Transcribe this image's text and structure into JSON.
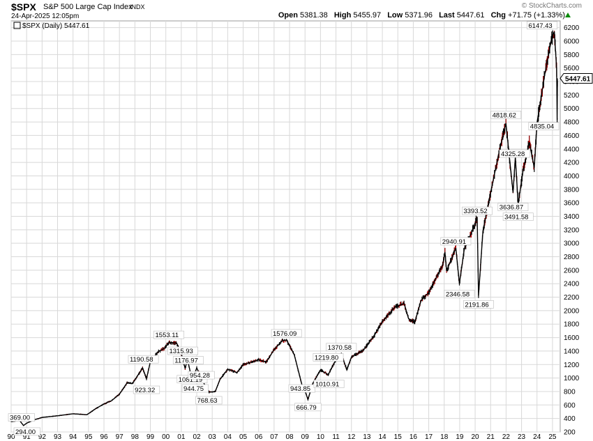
{
  "header": {
    "symbol": "$SPX",
    "name": "S&P 500 Large Cap Index",
    "exchange": "INDX",
    "datetime": "24-Apr-2025 12:05pm",
    "brand": "© StockCharts.com",
    "open_label": "Open",
    "open": "5381.38",
    "high_label": "High",
    "high": "5455.97",
    "low_label": "Low",
    "low": "5371.96",
    "last_label": "Last",
    "last": "5447.61",
    "chg_label": "Chg",
    "chg": "+71.75 (+1.33%)"
  },
  "legend": {
    "text": "$SPX (Daily) 5447.61",
    "icon": "chart-icon"
  },
  "price_tag": "5447.61",
  "colors": {
    "price_up": "#000000",
    "price_down": "#cc0000",
    "grid": "#d8d8d8",
    "up_arrow": "#0a8a0a"
  },
  "chart_data": {
    "type": "line",
    "title": "$SPX (Daily) 5447.61",
    "x_unit": "year",
    "xlim": [
      1990.0,
      2025.5
    ],
    "ylim": [
      200,
      6300
    ],
    "y_ticks": [
      200,
      400,
      600,
      800,
      1000,
      1200,
      1400,
      1600,
      1800,
      2000,
      2200,
      2400,
      2600,
      2800,
      3000,
      3200,
      3400,
      3600,
      3800,
      4000,
      4200,
      4400,
      4600,
      4800,
      5000,
      5200,
      5400,
      5600,
      5800,
      6000,
      6200
    ],
    "x_tick_labels": [
      "90",
      "91",
      "92",
      "93",
      "94",
      "95",
      "96",
      "97",
      "98",
      "99",
      "00",
      "01",
      "02",
      "03",
      "04",
      "05",
      "06",
      "07",
      "08",
      "09",
      "10",
      "11",
      "12",
      "13",
      "14",
      "15",
      "16",
      "17",
      "18",
      "19",
      "20",
      "21",
      "22",
      "23",
      "24",
      "25"
    ],
    "grid": true,
    "series": [
      {
        "values": [
          [
            1990.0,
            353
          ],
          [
            1990.55,
            369
          ],
          [
            1990.8,
            295
          ],
          [
            1991.0,
            330
          ],
          [
            1991.5,
            380
          ],
          [
            1992.0,
            415
          ],
          [
            1993.0,
            440
          ],
          [
            1994.0,
            470
          ],
          [
            1994.9,
            455
          ],
          [
            1995.5,
            550
          ],
          [
            1996.0,
            615
          ],
          [
            1996.5,
            665
          ],
          [
            1997.0,
            760
          ],
          [
            1997.5,
            930
          ],
          [
            1997.85,
            920
          ],
          [
            1998.5,
            1150
          ],
          [
            1998.75,
            990
          ],
          [
            1999.0,
            1240
          ],
          [
            1999.5,
            1390
          ],
          [
            1999.9,
            1440
          ],
          [
            2000.2,
            1530
          ],
          [
            2000.7,
            1520
          ],
          [
            2001.0,
            1360
          ],
          [
            2001.25,
            1140
          ],
          [
            2001.4,
            1280
          ],
          [
            2001.7,
            965
          ],
          [
            2002.0,
            1150
          ],
          [
            2002.55,
            880
          ],
          [
            2002.8,
            790
          ],
          [
            2003.2,
            800
          ],
          [
            2003.5,
            980
          ],
          [
            2004.0,
            1130
          ],
          [
            2004.6,
            1080
          ],
          [
            2005.0,
            1200
          ],
          [
            2006.0,
            1270
          ],
          [
            2006.5,
            1240
          ],
          [
            2007.0,
            1420
          ],
          [
            2007.5,
            1550
          ],
          [
            2007.8,
            1565
          ],
          [
            2008.3,
            1350
          ],
          [
            2008.8,
            900
          ],
          [
            2008.95,
            850
          ],
          [
            2009.19,
            680
          ],
          [
            2009.5,
            920
          ],
          [
            2010.0,
            1120
          ],
          [
            2010.5,
            1050
          ],
          [
            2011.0,
            1270
          ],
          [
            2011.35,
            1360
          ],
          [
            2011.7,
            1120
          ],
          [
            2012.0,
            1310
          ],
          [
            2012.8,
            1420
          ],
          [
            2013.5,
            1640
          ],
          [
            2014.0,
            1840
          ],
          [
            2014.8,
            2050
          ],
          [
            2015.4,
            2110
          ],
          [
            2015.7,
            1880
          ],
          [
            2016.1,
            1830
          ],
          [
            2016.5,
            2150
          ],
          [
            2017.0,
            2270
          ],
          [
            2017.9,
            2680
          ],
          [
            2018.05,
            2870
          ],
          [
            2018.15,
            2590
          ],
          [
            2018.75,
            2930
          ],
          [
            2018.98,
            2400
          ],
          [
            2019.3,
            2920
          ],
          [
            2019.9,
            3230
          ],
          [
            2020.13,
            3380
          ],
          [
            2020.22,
            2220
          ],
          [
            2020.5,
            3180
          ],
          [
            2021.0,
            3750
          ],
          [
            2021.5,
            4300
          ],
          [
            2021.99,
            4780
          ],
          [
            2022.45,
            3750
          ],
          [
            2022.6,
            4280
          ],
          [
            2022.78,
            3580
          ],
          [
            2023.1,
            4080
          ],
          [
            2023.5,
            4500
          ],
          [
            2023.82,
            4120
          ],
          [
            2024.0,
            4780
          ],
          [
            2024.5,
            5500
          ],
          [
            2024.95,
            6050
          ],
          [
            2025.12,
            6140
          ],
          [
            2025.27,
            5580
          ],
          [
            2025.3,
            4830
          ],
          [
            2025.32,
            5400
          ],
          [
            2025.31,
            5447.61
          ]
        ]
      }
    ],
    "annotations": [
      {
        "x": 1990.55,
        "y": 369.0,
        "text": "369.00"
      },
      {
        "x": 1990.8,
        "y": 294.0,
        "text": "294.00"
      },
      {
        "x": 1998.55,
        "y": 1190.58,
        "text": "1190.58"
      },
      {
        "x": 1998.75,
        "y": 923.32,
        "text": "923.32"
      },
      {
        "x": 2000.2,
        "y": 1553.11,
        "text": "1553.11"
      },
      {
        "x": 2001.1,
        "y": 1315.93,
        "text": "1315.93"
      },
      {
        "x": 2001.45,
        "y": 1176.97,
        "text": "1176.97"
      },
      {
        "x": 2001.7,
        "y": 1081.19,
        "text": "1081.19"
      },
      {
        "x": 2002.3,
        "y": 954.28,
        "text": "954.28"
      },
      {
        "x": 2001.9,
        "y": 944.75,
        "text": "944.75"
      },
      {
        "x": 2002.78,
        "y": 768.63,
        "text": "768.63"
      },
      {
        "x": 2007.8,
        "y": 1576.09,
        "text": "1576.09"
      },
      {
        "x": 2008.8,
        "y": 943.85,
        "text": "943.85"
      },
      {
        "x": 2009.19,
        "y": 666.79,
        "text": "666.79"
      },
      {
        "x": 2010.5,
        "y": 1219.8,
        "text": "1219.80"
      },
      {
        "x": 2010.55,
        "y": 1010.91,
        "text": "1010.91"
      },
      {
        "x": 2011.35,
        "y": 1370.58,
        "text": "1370.58"
      },
      {
        "x": 2018.75,
        "y": 2940.91,
        "text": "2940.91"
      },
      {
        "x": 2018.98,
        "y": 2346.58,
        "text": "2346.58"
      },
      {
        "x": 2020.13,
        "y": 3393.52,
        "text": "3393.52"
      },
      {
        "x": 2020.22,
        "y": 2191.86,
        "text": "2191.86"
      },
      {
        "x": 2021.99,
        "y": 4818.62,
        "text": "4818.62"
      },
      {
        "x": 2022.55,
        "y": 4325.28,
        "text": "4325.28"
      },
      {
        "x": 2022.45,
        "y": 3636.87,
        "text": "3636.87"
      },
      {
        "x": 2022.78,
        "y": 3491.58,
        "text": "3491.58"
      },
      {
        "x": 2025.12,
        "y": 6147.43,
        "text": "6147.43"
      },
      {
        "x": 2025.3,
        "y": 4835.04,
        "text": "4835.04"
      }
    ]
  }
}
